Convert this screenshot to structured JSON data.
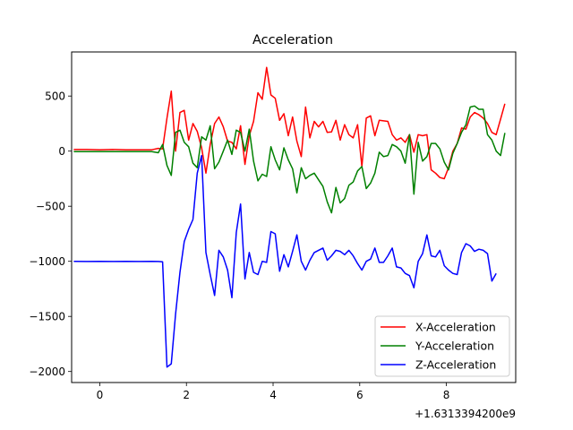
{
  "chart_data": {
    "type": "line",
    "title": "Acceleration",
    "xlabel": "",
    "ylabel": "",
    "x_offset_label": "+1.6313394200e9",
    "xlim": [
      -0.65,
      9.6
    ],
    "ylim": [
      -2100,
      900
    ],
    "x_ticks": [
      0,
      2,
      4,
      6,
      8
    ],
    "x_tick_labels": [
      "0",
      "2",
      "4",
      "6",
      "8"
    ],
    "y_ticks": [
      500,
      0,
      -500,
      -1000,
      -1500,
      -2000
    ],
    "y_tick_labels": [
      "500",
      "0",
      "−500",
      "−1000",
      "−1500",
      "−2000"
    ],
    "grid": false,
    "legend_position": "lower-right",
    "series": [
      {
        "name": "X-Acceleration",
        "color": "#ff0000",
        "points": [
          [
            -0.6,
            15
          ],
          [
            -0.3,
            15
          ],
          [
            0.0,
            12
          ],
          [
            0.3,
            15
          ],
          [
            0.6,
            12
          ],
          [
            0.9,
            12
          ],
          [
            1.2,
            12
          ],
          [
            1.35,
            25
          ],
          [
            1.45,
            20
          ],
          [
            1.55,
            300
          ],
          [
            1.65,
            545
          ],
          [
            1.75,
            0
          ],
          [
            1.85,
            350
          ],
          [
            1.95,
            370
          ],
          [
            2.05,
            100
          ],
          [
            2.15,
            250
          ],
          [
            2.25,
            180
          ],
          [
            2.35,
            30
          ],
          [
            2.45,
            -200
          ],
          [
            2.55,
            60
          ],
          [
            2.65,
            250
          ],
          [
            2.75,
            310
          ],
          [
            2.85,
            220
          ],
          [
            2.95,
            90
          ],
          [
            3.05,
            80
          ],
          [
            3.15,
            20
          ],
          [
            3.25,
            230
          ],
          [
            3.35,
            -120
          ],
          [
            3.45,
            140
          ],
          [
            3.55,
            270
          ],
          [
            3.65,
            530
          ],
          [
            3.75,
            470
          ],
          [
            3.85,
            760
          ],
          [
            3.95,
            510
          ],
          [
            4.05,
            480
          ],
          [
            4.15,
            280
          ],
          [
            4.25,
            340
          ],
          [
            4.35,
            140
          ],
          [
            4.45,
            310
          ],
          [
            4.55,
            90
          ],
          [
            4.65,
            -50
          ],
          [
            4.75,
            400
          ],
          [
            4.85,
            120
          ],
          [
            4.95,
            270
          ],
          [
            5.05,
            220
          ],
          [
            5.15,
            270
          ],
          [
            5.25,
            170
          ],
          [
            5.35,
            175
          ],
          [
            5.45,
            280
          ],
          [
            5.55,
            100
          ],
          [
            5.65,
            240
          ],
          [
            5.75,
            150
          ],
          [
            5.85,
            120
          ],
          [
            5.95,
            240
          ],
          [
            6.05,
            -140
          ],
          [
            6.15,
            300
          ],
          [
            6.25,
            320
          ],
          [
            6.35,
            140
          ],
          [
            6.45,
            280
          ],
          [
            6.55,
            275
          ],
          [
            6.65,
            270
          ],
          [
            6.75,
            150
          ],
          [
            6.85,
            100
          ],
          [
            6.95,
            120
          ],
          [
            7.05,
            80
          ],
          [
            7.15,
            150
          ],
          [
            7.25,
            -10
          ],
          [
            7.35,
            150
          ],
          [
            7.45,
            140
          ],
          [
            7.55,
            150
          ],
          [
            7.65,
            -170
          ],
          [
            7.75,
            -200
          ],
          [
            7.85,
            -240
          ],
          [
            7.95,
            -250
          ],
          [
            8.05,
            -150
          ],
          [
            8.15,
            0
          ],
          [
            8.25,
            70
          ],
          [
            8.35,
            210
          ],
          [
            8.45,
            200
          ],
          [
            8.55,
            310
          ],
          [
            8.65,
            350
          ],
          [
            8.75,
            330
          ],
          [
            8.85,
            300
          ],
          [
            8.95,
            250
          ],
          [
            9.05,
            170
          ],
          [
            9.15,
            150
          ],
          [
            9.25,
            290
          ],
          [
            9.35,
            430
          ]
        ]
      },
      {
        "name": "Y-Acceleration",
        "color": "#008000",
        "points": [
          [
            -0.6,
            -5
          ],
          [
            -0.3,
            -5
          ],
          [
            0.0,
            -5
          ],
          [
            0.3,
            -5
          ],
          [
            0.6,
            -5
          ],
          [
            0.9,
            -5
          ],
          [
            1.2,
            -5
          ],
          [
            1.35,
            -15
          ],
          [
            1.45,
            60
          ],
          [
            1.55,
            -130
          ],
          [
            1.65,
            -220
          ],
          [
            1.75,
            170
          ],
          [
            1.85,
            190
          ],
          [
            1.95,
            80
          ],
          [
            2.05,
            40
          ],
          [
            2.15,
            -110
          ],
          [
            2.25,
            -150
          ],
          [
            2.35,
            130
          ],
          [
            2.45,
            100
          ],
          [
            2.55,
            230
          ],
          [
            2.65,
            -160
          ],
          [
            2.75,
            -100
          ],
          [
            2.85,
            0
          ],
          [
            2.95,
            100
          ],
          [
            3.05,
            -30
          ],
          [
            3.15,
            190
          ],
          [
            3.25,
            170
          ],
          [
            3.35,
            0
          ],
          [
            3.45,
            200
          ],
          [
            3.55,
            -90
          ],
          [
            3.65,
            -270
          ],
          [
            3.75,
            -210
          ],
          [
            3.85,
            -230
          ],
          [
            3.95,
            40
          ],
          [
            4.05,
            -80
          ],
          [
            4.15,
            -170
          ],
          [
            4.25,
            30
          ],
          [
            4.35,
            -80
          ],
          [
            4.45,
            -160
          ],
          [
            4.55,
            -380
          ],
          [
            4.65,
            -150
          ],
          [
            4.75,
            -250
          ],
          [
            4.85,
            -220
          ],
          [
            4.95,
            -200
          ],
          [
            5.05,
            -260
          ],
          [
            5.15,
            -320
          ],
          [
            5.25,
            -460
          ],
          [
            5.35,
            -560
          ],
          [
            5.45,
            -330
          ],
          [
            5.55,
            -470
          ],
          [
            5.65,
            -430
          ],
          [
            5.75,
            -310
          ],
          [
            5.85,
            -280
          ],
          [
            5.95,
            -180
          ],
          [
            6.05,
            -140
          ],
          [
            6.15,
            -340
          ],
          [
            6.25,
            -290
          ],
          [
            6.35,
            -200
          ],
          [
            6.45,
            -10
          ],
          [
            6.55,
            -50
          ],
          [
            6.65,
            -40
          ],
          [
            6.75,
            60
          ],
          [
            6.85,
            40
          ],
          [
            6.95,
            0
          ],
          [
            7.05,
            -110
          ],
          [
            7.15,
            150
          ],
          [
            7.25,
            -390
          ],
          [
            7.35,
            80
          ],
          [
            7.45,
            -90
          ],
          [
            7.55,
            -50
          ],
          [
            7.65,
            70
          ],
          [
            7.75,
            70
          ],
          [
            7.85,
            20
          ],
          [
            7.95,
            -100
          ],
          [
            8.05,
            -170
          ],
          [
            8.15,
            -20
          ],
          [
            8.25,
            70
          ],
          [
            8.35,
            170
          ],
          [
            8.45,
            240
          ],
          [
            8.55,
            400
          ],
          [
            8.65,
            410
          ],
          [
            8.75,
            380
          ],
          [
            8.85,
            380
          ],
          [
            8.95,
            150
          ],
          [
            9.05,
            100
          ],
          [
            9.15,
            0
          ],
          [
            9.25,
            -40
          ],
          [
            9.35,
            165
          ]
        ]
      },
      {
        "name": "Z-Acceleration",
        "color": "#0000ff",
        "points": [
          [
            -0.6,
            -1000
          ],
          [
            -0.3,
            -1002
          ],
          [
            0.0,
            -1000
          ],
          [
            0.3,
            -1002
          ],
          [
            0.6,
            -1000
          ],
          [
            0.9,
            -1002
          ],
          [
            1.2,
            -1000
          ],
          [
            1.35,
            -1002
          ],
          [
            1.45,
            -1005
          ],
          [
            1.55,
            -1960
          ],
          [
            1.65,
            -1930
          ],
          [
            1.75,
            -1480
          ],
          [
            1.85,
            -1100
          ],
          [
            1.95,
            -820
          ],
          [
            2.05,
            -710
          ],
          [
            2.15,
            -620
          ],
          [
            2.25,
            -200
          ],
          [
            2.35,
            -40
          ],
          [
            2.45,
            -920
          ],
          [
            2.55,
            -1120
          ],
          [
            2.65,
            -1310
          ],
          [
            2.75,
            -900
          ],
          [
            2.85,
            -960
          ],
          [
            2.95,
            -1080
          ],
          [
            3.05,
            -1330
          ],
          [
            3.15,
            -740
          ],
          [
            3.25,
            -480
          ],
          [
            3.35,
            -1160
          ],
          [
            3.45,
            -920
          ],
          [
            3.55,
            -1100
          ],
          [
            3.65,
            -1120
          ],
          [
            3.75,
            -1000
          ],
          [
            3.85,
            -1010
          ],
          [
            3.95,
            -730
          ],
          [
            4.05,
            -750
          ],
          [
            4.15,
            -1090
          ],
          [
            4.25,
            -940
          ],
          [
            4.35,
            -1050
          ],
          [
            4.45,
            -910
          ],
          [
            4.55,
            -760
          ],
          [
            4.65,
            -1000
          ],
          [
            4.75,
            -1080
          ],
          [
            4.85,
            -990
          ],
          [
            4.95,
            -920
          ],
          [
            5.05,
            -900
          ],
          [
            5.15,
            -880
          ],
          [
            5.25,
            -990
          ],
          [
            5.35,
            -950
          ],
          [
            5.45,
            -900
          ],
          [
            5.55,
            -910
          ],
          [
            5.65,
            -940
          ],
          [
            5.75,
            -900
          ],
          [
            5.85,
            -950
          ],
          [
            5.95,
            -1020
          ],
          [
            6.05,
            -1080
          ],
          [
            6.15,
            -1000
          ],
          [
            6.25,
            -980
          ],
          [
            6.35,
            -880
          ],
          [
            6.45,
            -1010
          ],
          [
            6.55,
            -1010
          ],
          [
            6.65,
            -950
          ],
          [
            6.75,
            -880
          ],
          [
            6.85,
            -1050
          ],
          [
            6.95,
            -1060
          ],
          [
            7.05,
            -1110
          ],
          [
            7.15,
            -1130
          ],
          [
            7.25,
            -1240
          ],
          [
            7.35,
            -1000
          ],
          [
            7.45,
            -930
          ],
          [
            7.55,
            -760
          ],
          [
            7.65,
            -950
          ],
          [
            7.75,
            -960
          ],
          [
            7.85,
            -900
          ],
          [
            7.95,
            -1040
          ],
          [
            8.05,
            -1080
          ],
          [
            8.15,
            -1110
          ],
          [
            8.25,
            -1120
          ],
          [
            8.35,
            -920
          ],
          [
            8.45,
            -840
          ],
          [
            8.55,
            -860
          ],
          [
            8.65,
            -910
          ],
          [
            8.75,
            -890
          ],
          [
            8.85,
            -900
          ],
          [
            8.95,
            -930
          ],
          [
            9.05,
            -1180
          ],
          [
            9.15,
            -1110
          ]
        ]
      }
    ]
  }
}
